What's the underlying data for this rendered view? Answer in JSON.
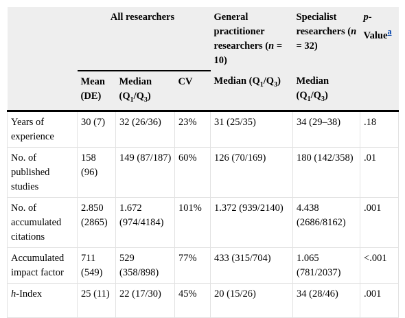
{
  "header": {
    "all_researchers": "All researchers",
    "general": [
      "General practitioner researchers (",
      "n",
      " = 10)"
    ],
    "specialist": [
      "Specialist researchers (",
      "n",
      " = 32)"
    ],
    "p_value": [
      "p",
      "-Value",
      "a"
    ]
  },
  "subheader": {
    "mean": "Mean (DE)",
    "median": [
      "Median (Q",
      "1",
      "/Q",
      "3",
      ")"
    ],
    "cv": "CV",
    "general_median": [
      "Median (Q",
      "1",
      "/Q",
      "3",
      ")"
    ],
    "specialist_median": [
      "Median (Q",
      "1",
      "/Q",
      "3",
      ")"
    ]
  },
  "table": {
    "rows": [
      {
        "label": "Years of experience",
        "cells": [
          "30 (7)",
          "32 (26/36)",
          "23%",
          "31 (25/35)",
          "34 (29–38)",
          ".18"
        ]
      },
      {
        "label": "No. of published studies",
        "cells": [
          "158 (96)",
          "149 (87/187)",
          "60%",
          "126 (70/169)",
          "180 (142/358)",
          ".01"
        ]
      },
      {
        "label": "No. of accumulated citations",
        "cells": [
          "2.850 (2865)",
          "1.672 (974/4184)",
          "101%",
          "1.372 (939/2140)",
          "4.438 (2686/8162)",
          ".001"
        ]
      },
      {
        "label": "Accumulated impact factor",
        "cells": [
          "711 (549)",
          "529 (358/898)",
          "77%",
          "433 (315/704)",
          "1.065 (781/2037)",
          "<.001"
        ]
      },
      {
        "label": [
          "h",
          "-Index"
        ],
        "cells": [
          "25 (11)",
          "22 (17/30)",
          "45%",
          "20 (15/26)",
          "34 (28/46)",
          ".001"
        ]
      }
    ]
  }
}
